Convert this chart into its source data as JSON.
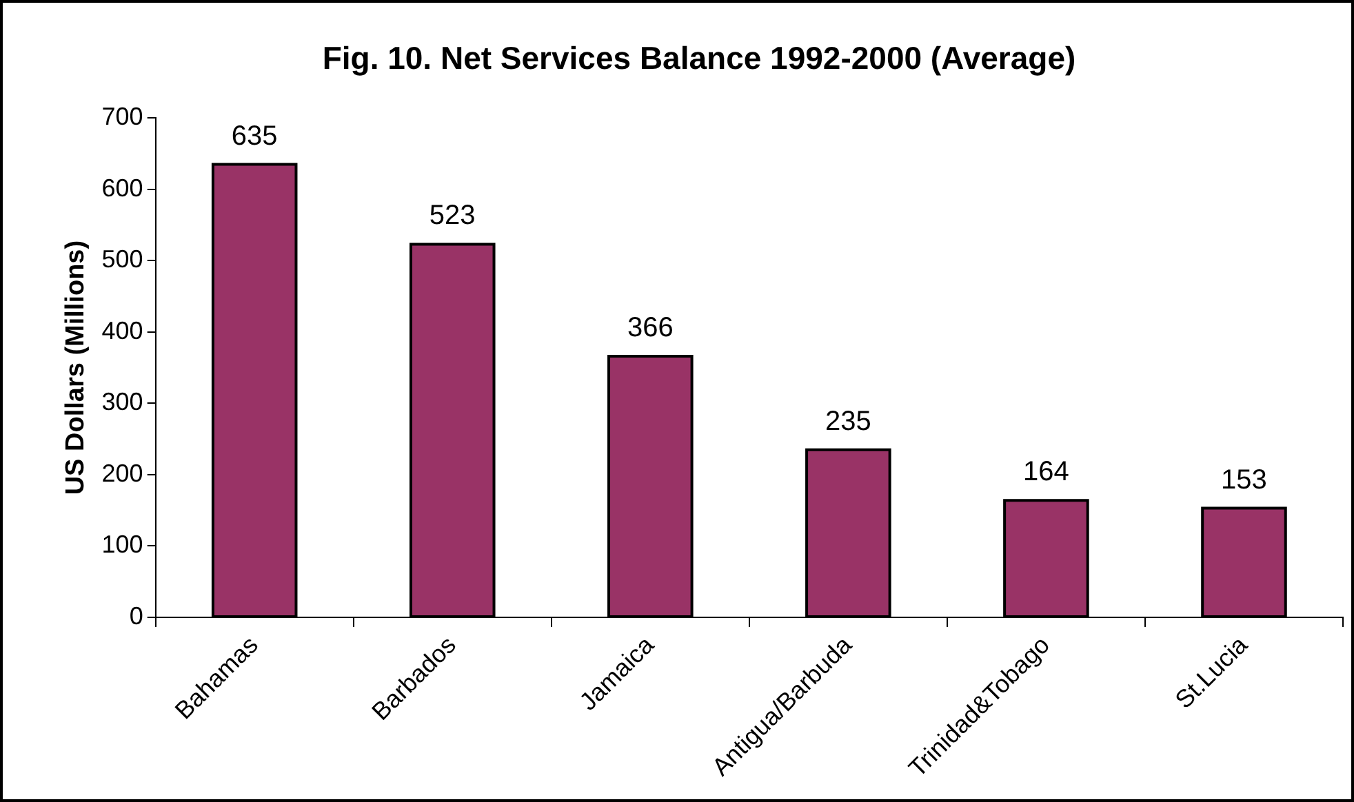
{
  "chart_data": {
    "type": "bar",
    "title": "Fig. 10. Net Services Balance 1992-2000 (Average)",
    "ylabel": "US Dollars (Millions)",
    "categories": [
      "Bahamas",
      "Barbados",
      "Jamaica",
      "Antigua/Barbuda",
      "Trinidad&Tobago",
      "St.Lucia"
    ],
    "values": [
      635,
      523,
      366,
      235,
      164,
      153
    ],
    "color": "#993366",
    "ylim": [
      0,
      700
    ],
    "yticks": [
      0,
      100,
      200,
      300,
      400,
      500,
      600,
      700
    ],
    "grid": false,
    "legend": false,
    "data_labels": true
  }
}
